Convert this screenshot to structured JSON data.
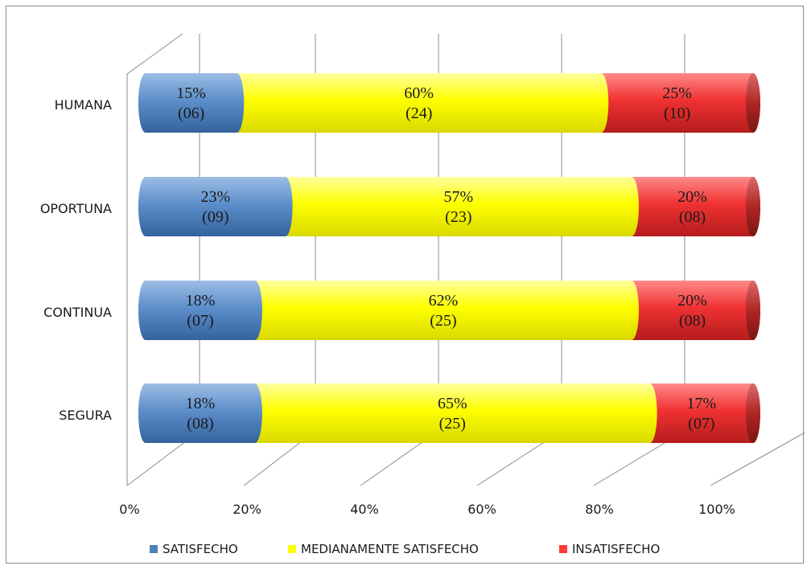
{
  "chart_data": {
    "type": "bar",
    "orientation": "horizontal",
    "stacked": "percent",
    "categories": [
      "HUMANA",
      "OPORTUNA",
      "CONTINUA",
      "SEGURA"
    ],
    "series": [
      {
        "name": "SATISFECHO",
        "color": "#4f81bd",
        "values": [
          15,
          23,
          18,
          18
        ],
        "labels": [
          [
            "15%",
            "(06)"
          ],
          [
            "23%",
            "(09)"
          ],
          [
            "18%",
            "(07)"
          ],
          [
            "18%",
            "(08)"
          ]
        ]
      },
      {
        "name": "MEDIANAMENTE SATISFECHO",
        "color": "#ffff00",
        "values": [
          60,
          57,
          62,
          65
        ],
        "labels": [
          [
            "60%",
            "(24)"
          ],
          [
            "57%",
            "(23)"
          ],
          [
            "62%",
            "(25)"
          ],
          [
            "65%",
            "(25)"
          ]
        ]
      },
      {
        "name": "INSATISFECHO",
        "color": "#ff3b3b",
        "values": [
          25,
          20,
          20,
          17
        ],
        "labels": [
          [
            "25%",
            "(10)"
          ],
          [
            "20%",
            "(08)"
          ],
          [
            "20%",
            "(08)"
          ],
          [
            "17%",
            "(07)"
          ]
        ]
      }
    ],
    "xticks": [
      "0%",
      "20%",
      "40%",
      "60%",
      "80%",
      "100%"
    ],
    "xlim": [
      0,
      100
    ],
    "grid": true,
    "legend": "bottom",
    "title": "",
    "xlabel": "",
    "ylabel": ""
  }
}
